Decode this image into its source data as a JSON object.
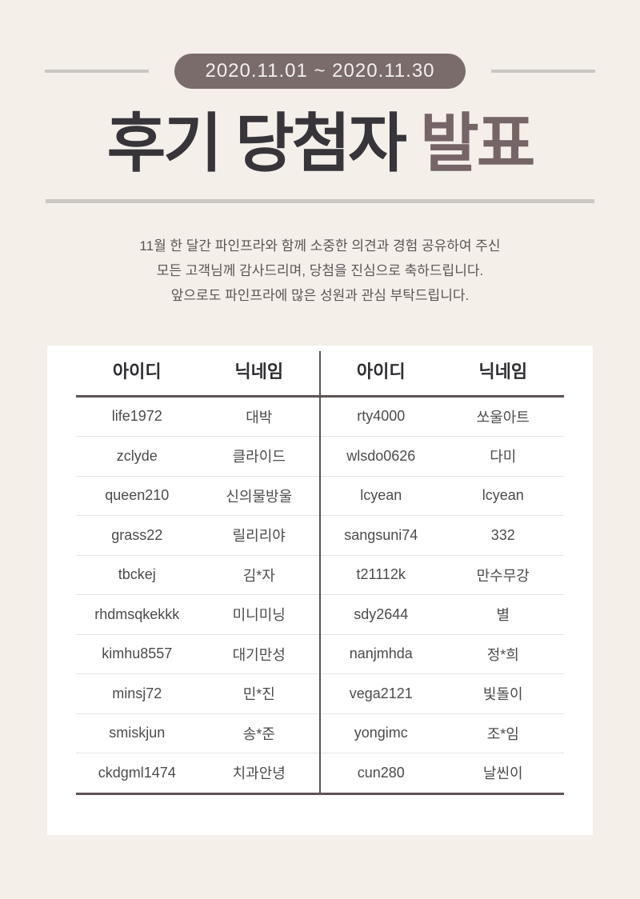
{
  "colors": {
    "background": "#f4efe9",
    "card_background": "#ffffff",
    "badge_background": "#7a6c6b",
    "badge_text": "#f3f0ee",
    "title_dark": "#37343a",
    "title_accent": "#756566",
    "decorative_line": "#c9c6c1",
    "title_divider": "#cbc8c3",
    "description_text": "#5b5556",
    "table_dark_line": "#5e5253",
    "table_row_line": "#e5e3e3",
    "cell_text": "#4c4b4d"
  },
  "header": {
    "date_range": "2020.11.01 ~ 2020.11.30"
  },
  "title": {
    "main": "후기 당첨자",
    "accent": "발표"
  },
  "description": {
    "line1": "11월 한 달간 파인프라와 함께 소중한 의견과 경험 공유하여 주신",
    "line2": "모든 고객님께 감사드리며, 당첨을 진심으로 축하드립니다.",
    "line3": "앞으로도 파인프라에 많은 성원과 관심 부탁드립니다."
  },
  "winners_table": {
    "headers": {
      "id": "아이디",
      "nickname": "닉네임"
    },
    "left": [
      {
        "id": "life1972",
        "nickname": "대박"
      },
      {
        "id": "zclyde",
        "nickname": "클라이드"
      },
      {
        "id": "queen210",
        "nickname": "신의물방울"
      },
      {
        "id": "grass22",
        "nickname": "릴리리야"
      },
      {
        "id": "tbckej",
        "nickname": "김*자"
      },
      {
        "id": "rhdmsqkekkk",
        "nickname": "미니미닝"
      },
      {
        "id": "kimhu8557",
        "nickname": "대기만성"
      },
      {
        "id": "minsj72",
        "nickname": "민*진"
      },
      {
        "id": "smiskjun",
        "nickname": "송*준"
      },
      {
        "id": "ckdgml1474",
        "nickname": "치과안녕"
      }
    ],
    "right": [
      {
        "id": "rty4000",
        "nickname": "쏘울아트"
      },
      {
        "id": "wlsdo0626",
        "nickname": "다미"
      },
      {
        "id": "lcyean",
        "nickname": "lcyean"
      },
      {
        "id": "sangsuni74",
        "nickname": "332"
      },
      {
        "id": "t21112k",
        "nickname": "만수무강"
      },
      {
        "id": "sdy2644",
        "nickname": "별"
      },
      {
        "id": "nanjmhda",
        "nickname": "정*희"
      },
      {
        "id": "vega2121",
        "nickname": "빛돌이"
      },
      {
        "id": "yongimc",
        "nickname": "조*임"
      },
      {
        "id": "cun280",
        "nickname": "날씬이"
      }
    ]
  }
}
